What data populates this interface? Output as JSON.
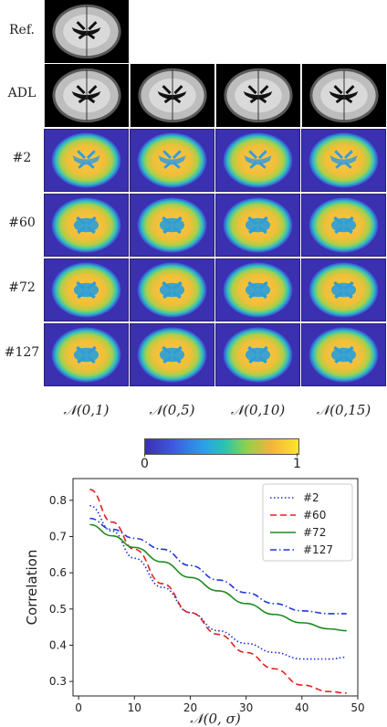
{
  "rows": {
    "ref": "Ref.",
    "adl": "ADL",
    "r2": "#2",
    "r60": "#60",
    "r72": "#72",
    "r127": "#127"
  },
  "columns": [
    "𝒩(0,1)",
    "𝒩(0,5)",
    "𝒩(0,10)",
    "𝒩(0,15)"
  ],
  "colorbar": {
    "min_label": "0",
    "max_label": "1"
  },
  "chart_data": {
    "type": "line",
    "xlabel": "𝒩(0, σ)",
    "ylabel": "Correlation",
    "xlim": [
      -1,
      50
    ],
    "ylim": [
      0.26,
      0.86
    ],
    "xticks": [
      0,
      10,
      20,
      30,
      40,
      50
    ],
    "yticks": [
      0.3,
      0.4,
      0.5,
      0.6,
      0.7,
      0.8
    ],
    "legend_position": "top-right",
    "grid": false,
    "x": [
      2,
      6,
      10,
      15,
      20,
      25,
      30,
      35,
      40,
      45,
      48
    ],
    "series": [
      {
        "name": "#2",
        "color": "#1f2fcf",
        "dash": "dotted",
        "values": [
          0.785,
          0.715,
          0.64,
          0.56,
          0.49,
          0.44,
          0.405,
          0.38,
          0.362,
          0.362,
          0.367
        ]
      },
      {
        "name": "#60",
        "color": "#e02020",
        "dash": "dashed",
        "values": [
          0.83,
          0.74,
          0.665,
          0.57,
          0.49,
          0.43,
          0.38,
          0.335,
          0.29,
          0.272,
          0.268
        ]
      },
      {
        "name": "#72",
        "color": "#1e8a1e",
        "dash": "solid",
        "values": [
          0.733,
          0.702,
          0.67,
          0.63,
          0.587,
          0.55,
          0.515,
          0.485,
          0.462,
          0.445,
          0.44
        ]
      },
      {
        "name": "#127",
        "color": "#2036d8",
        "dash": "dashdot",
        "values": [
          0.75,
          0.72,
          0.695,
          0.665,
          0.62,
          0.58,
          0.545,
          0.515,
          0.495,
          0.487,
          0.487
        ]
      }
    ]
  }
}
